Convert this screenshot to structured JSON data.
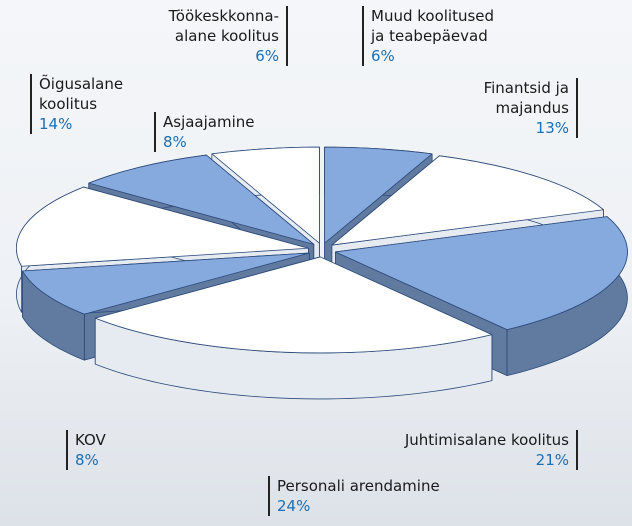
{
  "chart_data": {
    "type": "pie",
    "categories": [
      "Muud koolitused\nja teabepäevad",
      "Finantsid ja\nmajandus",
      "Juhtimisalane koolitus",
      "Personali arendamine",
      "KOV",
      "Õigusalane\nkoolitus",
      "Asjaajamine",
      "Töökeskkonna-\nalane koolitus"
    ],
    "values": [
      6,
      13,
      21,
      24,
      8,
      14,
      8,
      6
    ],
    "value_labels": [
      "6%",
      "13%",
      "21%",
      "24%",
      "8%",
      "14%",
      "8%",
      "6%"
    ],
    "colors": [
      "#86a9de",
      "#ffffff",
      "#86a9de",
      "#ffffff",
      "#86a9de",
      "#ffffff",
      "#86a9de",
      "#ffffff"
    ]
  }
}
